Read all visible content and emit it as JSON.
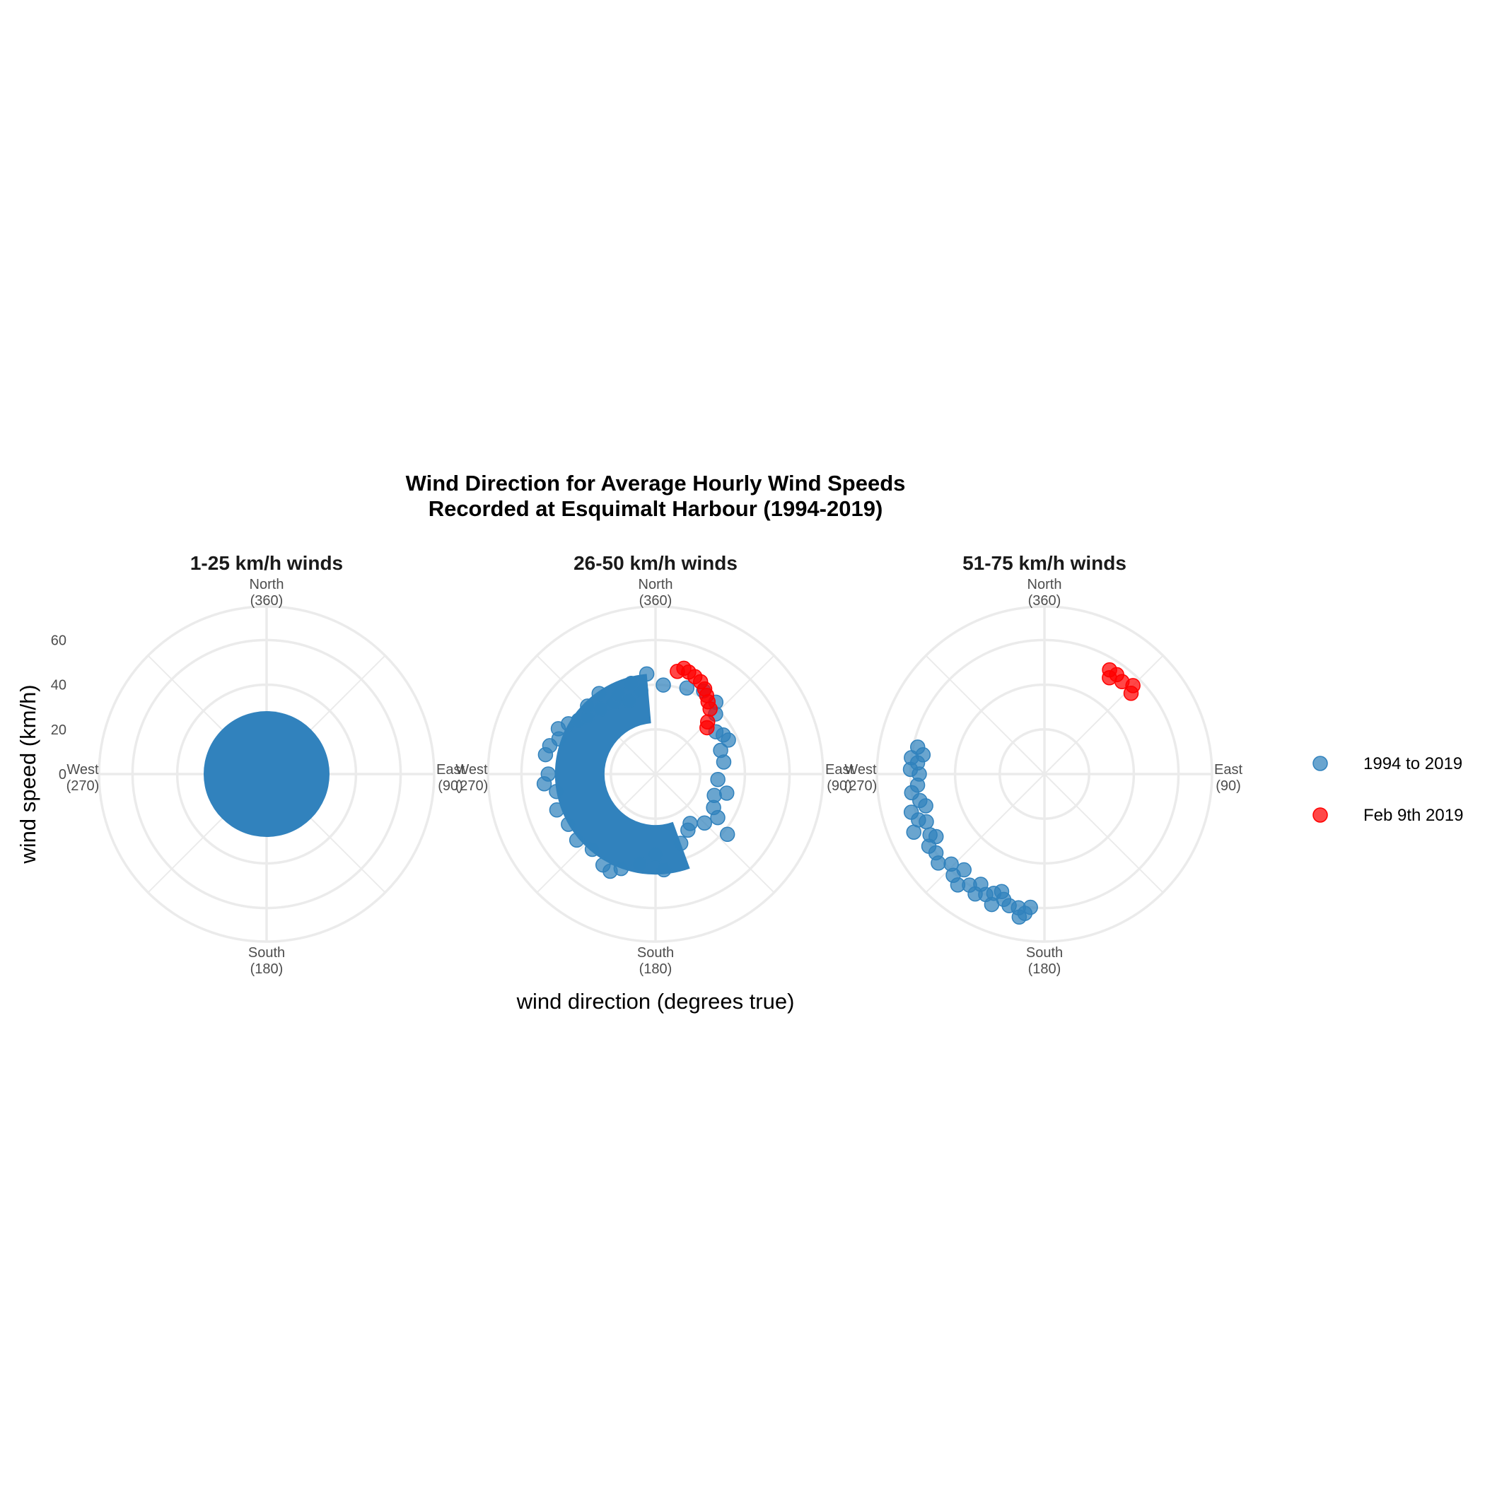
{
  "colors": {
    "series_1994": "#3182bd",
    "series_feb9": "#ff0000",
    "grid": "#ebebeb"
  },
  "chart_data": {
    "type": "scatter",
    "coordinate_system": "polar",
    "title": [
      "Wind Direction for Average Hourly Wind Speeds",
      "Recorded at Esquimalt Harbour (1994-2019)"
    ],
    "xlabel": "wind direction (degrees true)",
    "ylabel": "wind speed (km/h)",
    "radial_ticks": [
      0,
      20,
      40,
      60
    ],
    "radial_range": [
      0,
      75
    ],
    "direction_labels": [
      {
        "angle": 360,
        "name": "North",
        "value": "(360)"
      },
      {
        "angle": 90,
        "name": "East",
        "value": "(90)"
      },
      {
        "angle": 180,
        "name": "South",
        "value": "(180)"
      },
      {
        "angle": 270,
        "name": "West",
        "value": "(270)"
      }
    ],
    "legend": {
      "position": "right",
      "entries": [
        {
          "key": "series_1994",
          "label": "1994 to 2019"
        },
        {
          "key": "series_feb9",
          "label": "Feb 9th 2019"
        }
      ]
    },
    "facets": [
      {
        "title": "1-25 km/h winds",
        "speed_range": [
          1,
          25
        ],
        "series": [
          {
            "key": "series_1994",
            "points": "filled_disc",
            "direction_range": [
              0,
              360
            ],
            "speed_range": [
              1,
              25
            ]
          }
        ]
      },
      {
        "title": "26-50 km/h winds",
        "speed_range": [
          26,
          50
        ],
        "series": [
          {
            "key": "series_1994",
            "points": [
              [
                350,
                38
              ],
              [
                5,
                40
              ],
              [
                20,
                41
              ],
              [
                30,
                43
              ],
              [
                40,
                42
              ],
              [
                45,
                38
              ],
              [
                55,
                33
              ],
              [
                60,
                35
              ],
              [
                65,
                36
              ],
              [
                70,
                31
              ],
              [
                80,
                31
              ],
              [
                95,
                28
              ],
              [
                105,
                33
              ],
              [
                110,
                28
              ],
              [
                120,
                30
              ],
              [
                125,
                34
              ],
              [
                130,
                42
              ],
              [
                135,
                31
              ],
              [
                145,
                27
              ],
              [
                150,
                29
              ],
              [
                160,
                33
              ],
              [
                175,
                43
              ],
              [
                180,
                36
              ],
              [
                190,
                41
              ],
              [
                200,
                45
              ],
              [
                205,
                48
              ],
              [
                210,
                47
              ],
              [
                220,
                44
              ],
              [
                230,
                46
              ],
              [
                240,
                45
              ],
              [
                250,
                47
              ],
              [
                260,
                45
              ],
              [
                265,
                50
              ],
              [
                270,
                48
              ],
              [
                280,
                50
              ],
              [
                285,
                49
              ],
              [
                290,
                46
              ],
              [
                295,
                48
              ],
              [
                300,
                45
              ],
              [
                305,
                42
              ],
              [
                310,
                40
              ],
              [
                315,
                43
              ],
              [
                320,
                38
              ],
              [
                325,
                44
              ],
              [
                330,
                37
              ],
              [
                335,
                39
              ],
              [
                340,
                35
              ],
              [
                345,
                42
              ],
              [
                355,
                45
              ]
            ],
            "fill_ring": {
              "r_inner": 26,
              "r_outer": 45,
              "direction_range": [
                160,
                355
              ]
            }
          },
          {
            "key": "series_feb9",
            "points": [
              [
                12,
                47
              ],
              [
                15,
                49
              ],
              [
                18,
                48
              ],
              [
                22,
                47
              ],
              [
                26,
                46
              ],
              [
                30,
                44
              ],
              [
                33,
                42
              ],
              [
                36,
                40
              ],
              [
                40,
                38
              ],
              [
                45,
                33
              ],
              [
                48,
                31
              ]
            ]
          }
        ]
      },
      {
        "title": "51-75 km/h winds",
        "speed_range": [
          51,
          75
        ],
        "series": [
          {
            "key": "series_1994",
            "points": [
              [
                275,
                57
              ],
              [
                277,
                60
              ],
              [
                279,
                55
              ],
              [
                282,
                58
              ],
              [
                262,
                60
              ],
              [
                258,
                57
              ],
              [
                254,
                62
              ],
              [
                250,
                60
              ],
              [
                246,
                64
              ],
              [
                242,
                58
              ],
              [
                238,
                61
              ],
              [
                234,
                60
              ],
              [
                230,
                62
              ],
              [
                226,
                58
              ],
              [
                222,
                61
              ],
              [
                218,
                63
              ],
              [
                214,
                60
              ],
              [
                210,
                62
              ],
              [
                206,
                60
              ],
              [
                202,
                63
              ],
              [
                198,
                59
              ],
              [
                195,
                61
              ],
              [
                191,
                61
              ],
              [
                188,
                63
              ],
              [
                186,
                60
              ],
              [
                190,
                65
              ],
              [
                200,
                56
              ],
              [
                210,
                57
              ],
              [
                220,
                56
              ],
              [
                240,
                56
              ],
              [
                248,
                57
              ],
              [
                265,
                57
              ],
              [
                270,
                56
              ],
              [
                272,
                60
              ],
              [
                255,
                55
              ],
              [
                203,
                58
              ]
            ]
          },
          {
            "key": "series_feb9",
            "points": [
              [
                32,
                55
              ],
              [
                36,
                55
              ],
              [
                40,
                54
              ],
              [
                45,
                56
              ],
              [
                47,
                53
              ],
              [
                34,
                52
              ]
            ]
          }
        ]
      }
    ]
  }
}
